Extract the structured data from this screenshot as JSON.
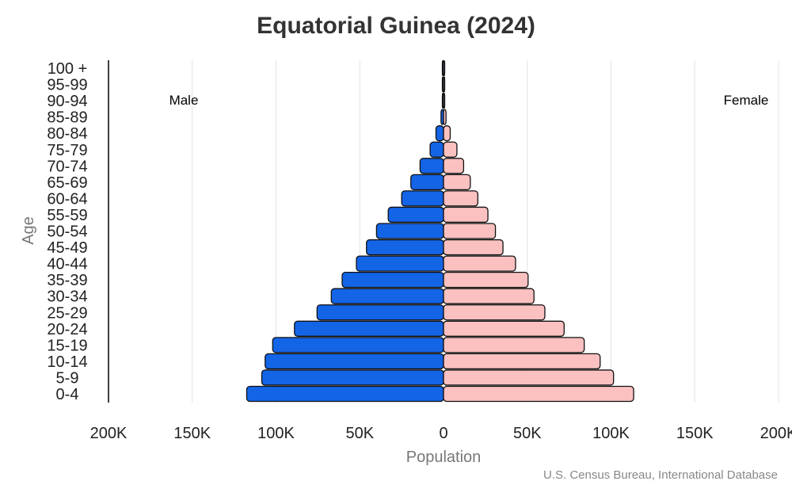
{
  "chart_data": {
    "type": "bar",
    "orientation": "horizontal-pyramid",
    "title": "Equatorial Guinea (2024)",
    "xlabel": "Population",
    "ylabel": "Age",
    "source": "U.S. Census Bureau, International Database",
    "categories": [
      "0-4",
      "5-9",
      "10-14",
      "15-19",
      "20-24",
      "25-29",
      "30-34",
      "35-39",
      "40-44",
      "45-49",
      "50-54",
      "55-59",
      "60-64",
      "65-69",
      "70-74",
      "75-79",
      "80-84",
      "85-89",
      "90-94",
      "95-99",
      "100 +"
    ],
    "series": [
      {
        "name": "Male",
        "color": "#1464e6",
        "values": [
          117500,
          108500,
          106500,
          102000,
          89000,
          75500,
          67000,
          60500,
          52000,
          46000,
          40000,
          33000,
          25000,
          19500,
          14000,
          8000,
          4500,
          1500,
          500,
          200,
          100
        ]
      },
      {
        "name": "Female",
        "color": "#fbc0c0",
        "values": [
          113500,
          101500,
          93500,
          84000,
          72000,
          60500,
          54000,
          50500,
          43000,
          35500,
          31000,
          26500,
          20500,
          16000,
          12000,
          8000,
          4000,
          1500,
          500,
          200,
          100
        ]
      }
    ],
    "xlim": [
      -200000,
      200000
    ],
    "xticks": [
      -200000,
      -150000,
      -100000,
      -50000,
      0,
      50000,
      100000,
      150000,
      200000
    ],
    "xtick_labels": [
      "200K",
      "150K",
      "100K",
      "50K",
      "0",
      "50K",
      "100K",
      "150K",
      "200K"
    ],
    "grid": true,
    "legend": "none"
  }
}
